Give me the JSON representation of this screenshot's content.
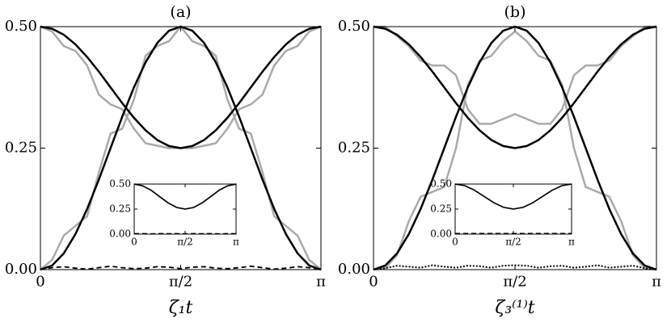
{
  "chart_data": [
    {
      "type": "line",
      "title": "(a)",
      "xlabel": "ζ₁t",
      "xlim": [
        0,
        3.1416
      ],
      "ylim": [
        0,
        0.5
      ],
      "xticks": [
        0,
        {
          "value": 1.5708,
          "label": "π/2"
        },
        {
          "value": 3.1416,
          "label": "π"
        }
      ],
      "yticks": [
        {
          "value": 0,
          "label": "0.00"
        },
        0.25,
        {
          "value": 0.5,
          "label": "0.50"
        }
      ],
      "x": [
        0,
        0.1309,
        0.2618,
        0.3927,
        0.5236,
        0.6545,
        0.7854,
        0.9163,
        1.0472,
        1.1781,
        1.309,
        1.4399,
        1.5708,
        1.7017,
        1.8326,
        1.9635,
        2.0944,
        2.2253,
        2.3562,
        2.4871,
        2.618,
        2.7489,
        2.8798,
        3.0107,
        3.1416
      ],
      "series": [
        {
          "color": "#aaaaaa",
          "linewidth": 2.5,
          "linestyle": "solid",
          "values": [
            0,
            0.02,
            0.07,
            0.09,
            0.11,
            0.2,
            0.28,
            0.29,
            0.35,
            0.44,
            0.46,
            0.47,
            0.5,
            0.47,
            0.46,
            0.44,
            0.35,
            0.29,
            0.28,
            0.2,
            0.11,
            0.09,
            0.07,
            0.02,
            0
          ]
        },
        {
          "color": "#aaaaaa",
          "linewidth": 2.5,
          "linestyle": "solid",
          "values": [
            0.5,
            0.49,
            0.46,
            0.45,
            0.42,
            0.36,
            0.34,
            0.33,
            0.29,
            0.26,
            0.255,
            0.25,
            0.25,
            0.25,
            0.255,
            0.26,
            0.29,
            0.33,
            0.34,
            0.36,
            0.42,
            0.45,
            0.46,
            0.49,
            0.5
          ]
        },
        {
          "color": "#000000",
          "linewidth": 2.5,
          "linestyle": "solid",
          "values": [
            0,
            0.0085,
            0.0335,
            0.0732,
            0.125,
            0.1853,
            0.25,
            0.3147,
            0.375,
            0.4268,
            0.4665,
            0.4915,
            0.5,
            0.4915,
            0.4665,
            0.4268,
            0.375,
            0.3147,
            0.25,
            0.1853,
            0.125,
            0.0732,
            0.0335,
            0.0085,
            0
          ]
        },
        {
          "color": "#000000",
          "linewidth": 2.5,
          "linestyle": "solid",
          "values": [
            0.5,
            0.4957,
            0.4833,
            0.4634,
            0.4375,
            0.4074,
            0.375,
            0.3426,
            0.3125,
            0.2866,
            0.2667,
            0.2543,
            0.25,
            0.2543,
            0.2667,
            0.2866,
            0.3125,
            0.3426,
            0.375,
            0.4074,
            0.4375,
            0.4634,
            0.4833,
            0.4957,
            0.5
          ]
        },
        {
          "color": "#000000",
          "linewidth": 1.8,
          "linestyle": "dashed",
          "values": [
            0,
            0.004,
            0.006,
            0.003,
            0.001,
            0.004,
            0.007,
            0.004,
            0.002,
            0.003,
            0.006,
            0.005,
            0.002,
            0.005,
            0.006,
            0.003,
            0.002,
            0.004,
            0.007,
            0.004,
            0.001,
            0.003,
            0.006,
            0.004,
            0
          ]
        }
      ],
      "inset": {
        "xlim": [
          0,
          3.1416
        ],
        "ylim": [
          0,
          0.5
        ],
        "xticks": [
          0,
          {
            "value": 1.5708,
            "label": "π/2"
          },
          {
            "value": 3.1416,
            "label": "π"
          }
        ],
        "yticks": [
          {
            "value": 0,
            "label": "0.00"
          },
          0.25,
          {
            "value": 0.5,
            "label": "0.50"
          }
        ],
        "x": [
          0,
          0.2618,
          0.5236,
          0.7854,
          1.0472,
          1.309,
          1.5708,
          1.8326,
          2.0944,
          2.3562,
          2.618,
          2.8798,
          3.1416
        ],
        "series": [
          {
            "color": "#aaaaaa",
            "linewidth": 2,
            "linestyle": "solid",
            "values": [
              0.5,
              0.48,
              0.44,
              0.37,
              0.31,
              0.265,
              0.25,
              0.265,
              0.31,
              0.37,
              0.44,
              0.48,
              0.5
            ]
          },
          {
            "color": "#000000",
            "linewidth": 1.5,
            "linestyle": "solid",
            "values": [
              0.5,
              0.4833,
              0.4375,
              0.375,
              0.3125,
              0.2667,
              0.25,
              0.2667,
              0.3125,
              0.375,
              0.4375,
              0.4833,
              0.5
            ]
          },
          {
            "color": "#000000",
            "linewidth": 1.5,
            "linestyle": "dashed",
            "values": [
              0.004,
              0.005,
              0.003,
              0.005,
              0.004,
              0.005,
              0.003,
              0.005,
              0.004,
              0.005,
              0.003,
              0.005,
              0.004
            ]
          }
        ]
      }
    },
    {
      "type": "line",
      "title": "(b)",
      "xlabel": "ζ₃⁽¹⁾t",
      "xlim": [
        0,
        3.1416
      ],
      "ylim": [
        0,
        0.5
      ],
      "xticks": [
        0,
        {
          "value": 1.5708,
          "label": "π/2"
        },
        {
          "value": 3.1416,
          "label": "π"
        }
      ],
      "yticks": [
        {
          "value": 0,
          "label": "0.00"
        },
        0.25,
        {
          "value": 0.5,
          "label": "0.50"
        }
      ],
      "x": [
        0,
        0.1309,
        0.2618,
        0.3927,
        0.5236,
        0.6545,
        0.7854,
        0.9163,
        1.0472,
        1.1781,
        1.309,
        1.4399,
        1.5708,
        1.7017,
        1.8326,
        1.9635,
        2.0944,
        2.2253,
        2.3562,
        2.4871,
        2.618,
        2.7489,
        2.8798,
        3.0107,
        3.1416
      ],
      "series": [
        {
          "color": "#aaaaaa",
          "linewidth": 2.5,
          "linestyle": "solid",
          "values": [
            0,
            0.003,
            0.03,
            0.1,
            0.15,
            0.16,
            0.17,
            0.25,
            0.38,
            0.43,
            0.44,
            0.47,
            0.49,
            0.47,
            0.44,
            0.43,
            0.38,
            0.25,
            0.17,
            0.16,
            0.15,
            0.1,
            0.03,
            0.003,
            0
          ]
        },
        {
          "color": "#aaaaaa",
          "linewidth": 2.5,
          "linestyle": "solid",
          "values": [
            0.5,
            0.5,
            0.48,
            0.46,
            0.43,
            0.42,
            0.42,
            0.4,
            0.33,
            0.3,
            0.3,
            0.31,
            0.32,
            0.31,
            0.3,
            0.3,
            0.33,
            0.4,
            0.42,
            0.42,
            0.43,
            0.46,
            0.48,
            0.5,
            0.5
          ]
        },
        {
          "color": "#000000",
          "linewidth": 2.5,
          "linestyle": "solid",
          "values": [
            0,
            0.0085,
            0.0335,
            0.0732,
            0.125,
            0.1853,
            0.25,
            0.3147,
            0.375,
            0.4268,
            0.4665,
            0.4915,
            0.5,
            0.4915,
            0.4665,
            0.4268,
            0.375,
            0.3147,
            0.25,
            0.1853,
            0.125,
            0.0732,
            0.0335,
            0.0085,
            0
          ]
        },
        {
          "color": "#000000",
          "linewidth": 2.5,
          "linestyle": "solid",
          "values": [
            0.5,
            0.4957,
            0.4833,
            0.4634,
            0.4375,
            0.4074,
            0.375,
            0.3426,
            0.3125,
            0.2866,
            0.2667,
            0.2543,
            0.25,
            0.2543,
            0.2667,
            0.2866,
            0.3125,
            0.3426,
            0.375,
            0.4074,
            0.4375,
            0.4634,
            0.4833,
            0.4957,
            0.5
          ]
        },
        {
          "color": "#000000",
          "linewidth": 2,
          "linestyle": "dotted",
          "values": [
            0,
            0.003,
            0.008,
            0.006,
            0.004,
            0.009,
            0.006,
            0.004,
            0.008,
            0.007,
            0.004,
            0.008,
            0.009,
            0.008,
            0.004,
            0.007,
            0.008,
            0.004,
            0.006,
            0.009,
            0.004,
            0.006,
            0.008,
            0.003,
            0
          ]
        }
      ],
      "inset": {
        "xlim": [
          0,
          3.1416
        ],
        "ylim": [
          0,
          0.5
        ],
        "xticks": [
          0,
          {
            "value": 1.5708,
            "label": "π/2"
          },
          {
            "value": 3.1416,
            "label": "π"
          }
        ],
        "yticks": [
          {
            "value": 0,
            "label": "0.00"
          },
          0.25,
          {
            "value": 0.5,
            "label": "0.50"
          }
        ],
        "x": [
          0,
          0.2618,
          0.5236,
          0.7854,
          1.0472,
          1.309,
          1.5708,
          1.8326,
          2.0944,
          2.3562,
          2.618,
          2.8798,
          3.1416
        ],
        "series": [
          {
            "color": "#aaaaaa",
            "linewidth": 2,
            "linestyle": "solid",
            "values": [
              0.5,
              0.485,
              0.44,
              0.377,
              0.314,
              0.268,
              0.252,
              0.268,
              0.314,
              0.377,
              0.44,
              0.485,
              0.5
            ]
          },
          {
            "color": "#000000",
            "linewidth": 1.5,
            "linestyle": "solid",
            "values": [
              0.5,
              0.4833,
              0.4375,
              0.375,
              0.3125,
              0.2667,
              0.25,
              0.2667,
              0.3125,
              0.375,
              0.4375,
              0.4833,
              0.5
            ]
          },
          {
            "color": "#000000",
            "linewidth": 1.5,
            "linestyle": "dashed",
            "values": [
              0.006,
              0.006,
              0.006,
              0.006,
              0.006,
              0.006,
              0.006,
              0.006,
              0.006,
              0.006,
              0.006,
              0.006,
              0.006
            ]
          }
        ]
      }
    }
  ]
}
